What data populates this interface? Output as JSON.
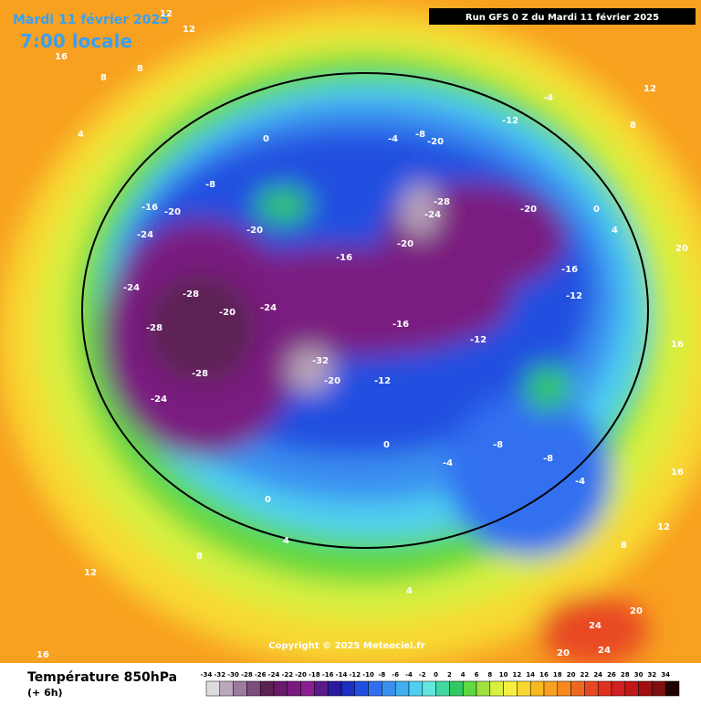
{
  "header": {
    "date": "Mardi 11 février 2025",
    "time": "7:00 locale",
    "run": "Run GFS 0 Z du Mardi 11 février 2025"
  },
  "copyright": "Copyright © 2025 Meteociel.fr",
  "legend": {
    "title": "Température 850hPa",
    "subtitle": "(+ 6h)",
    "ticks": [
      -34,
      -32,
      -30,
      -28,
      -26,
      -24,
      -22,
      -20,
      -18,
      -16,
      -14,
      -12,
      -10,
      -8,
      -6,
      -4,
      -2,
      0,
      2,
      4,
      6,
      8,
      10,
      12,
      14,
      16,
      18,
      20,
      22,
      24,
      26,
      28,
      30,
      32,
      34
    ],
    "colors": [
      "#dcdcdc",
      "#bca8bc",
      "#9c7c9c",
      "#7c4c7c",
      "#5c2052",
      "#6a1a6a",
      "#7a1a80",
      "#8a2090",
      "#5a1a8a",
      "#2a1aa0",
      "#1a30c0",
      "#2050e0",
      "#3070f0",
      "#3a90f0",
      "#40b0f0",
      "#50d0f0",
      "#60e8e0",
      "#40d8a0",
      "#30c860",
      "#60d840",
      "#a0e040",
      "#d8f040",
      "#f8f040",
      "#f8d830",
      "#f8b820",
      "#f8a020",
      "#f88820",
      "#f06820",
      "#e84820",
      "#e03020",
      "#d02020",
      "#c01818",
      "#a01010",
      "#801010",
      "#200000"
    ]
  },
  "map": {
    "labels": [
      "12",
      "12",
      "16",
      "8",
      "8",
      "4",
      "0",
      "-4",
      "-8",
      "-12",
      "-16",
      "-20",
      "-20",
      "-24",
      "-24",
      "-28",
      "-28",
      "-28",
      "-24",
      "-20",
      "-24",
      "-32",
      "-20",
      "-16",
      "-12",
      "-8",
      "-4",
      "0",
      "4",
      "8",
      "12",
      "16",
      "-20",
      "-24",
      "-28",
      "-20",
      "-16",
      "-12",
      "-8",
      "-4",
      "0",
      "4",
      "8",
      "12",
      "16",
      "20",
      "24",
      "20",
      "-20",
      "-16",
      "-12",
      "-8",
      "-4",
      "0",
      "4",
      "8",
      "12",
      "16",
      "20",
      "24"
    ]
  }
}
